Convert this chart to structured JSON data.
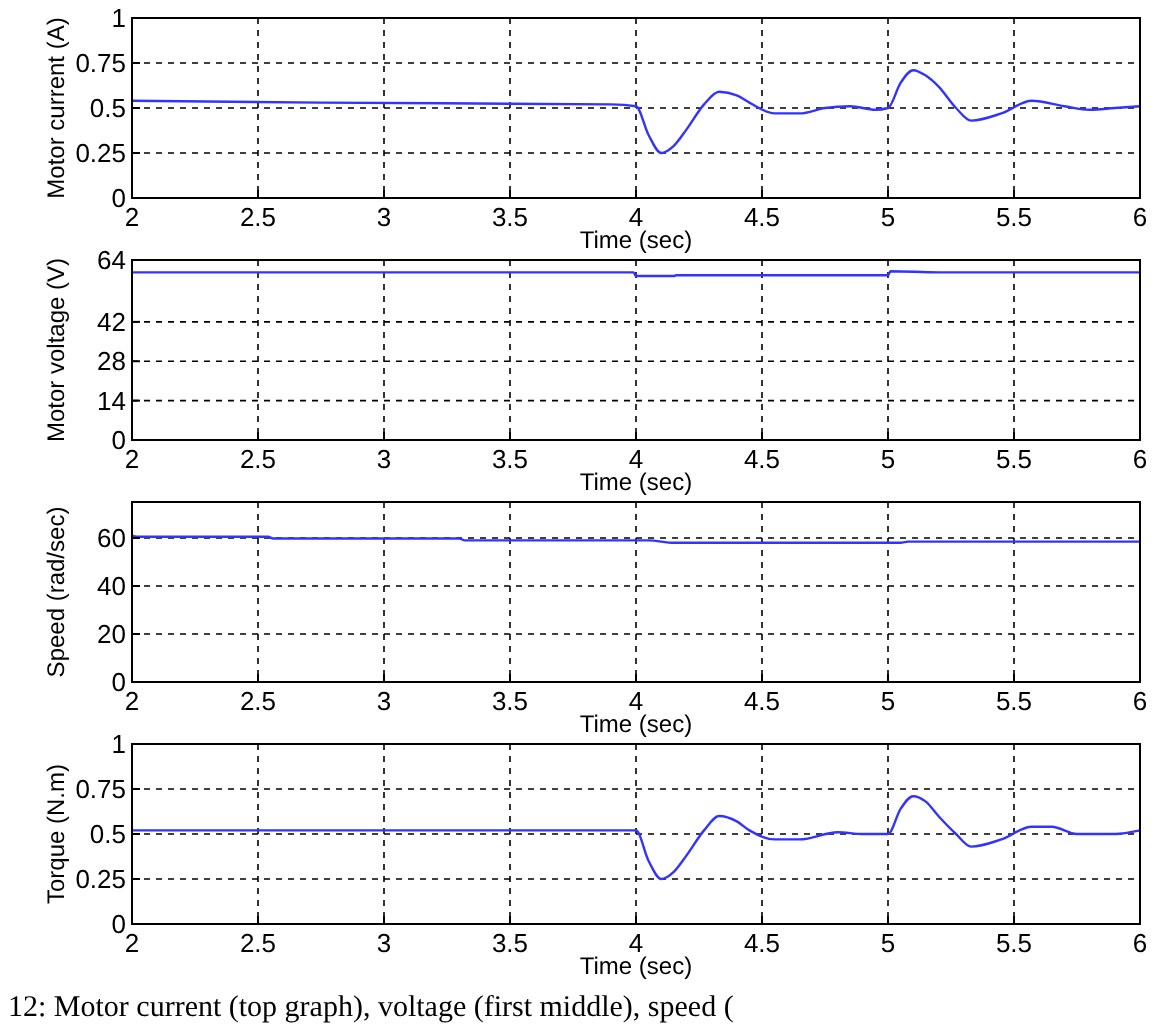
{
  "chart_data": [
    {
      "type": "line",
      "xlabel": "Time (sec)",
      "ylabel": "Motor current (A)",
      "xlim": [
        2,
        6
      ],
      "xticks": [
        2,
        2.5,
        3,
        3.5,
        4,
        4.5,
        5,
        5.5,
        6
      ],
      "ylim": [
        0,
        1
      ],
      "yticks": [
        0,
        0.25,
        0.5,
        0.75,
        1
      ],
      "grid": true,
      "series": [
        {
          "color": "#3333ff",
          "x": [
            2,
            2.75,
            3.9,
            4,
            4.05,
            4.1,
            4.15,
            4.2,
            4.27,
            4.33,
            4.4,
            4.45,
            4.55,
            4.65,
            4.75,
            4.85,
            4.95,
            5,
            5.05,
            5.1,
            5.15,
            5.2,
            5.27,
            5.33,
            5.45,
            5.57,
            5.7,
            5.8,
            5.9,
            6
          ],
          "values": [
            0.54,
            0.53,
            0.52,
            0.51,
            0.35,
            0.25,
            0.29,
            0.38,
            0.52,
            0.59,
            0.57,
            0.53,
            0.47,
            0.47,
            0.5,
            0.51,
            0.49,
            0.5,
            0.64,
            0.71,
            0.68,
            0.62,
            0.5,
            0.43,
            0.47,
            0.54,
            0.51,
            0.49,
            0.5,
            0.51
          ]
        }
      ]
    },
    {
      "type": "line",
      "xlabel": "Time (sec)",
      "ylabel": "Motor voltage (V)",
      "xlim": [
        2,
        6
      ],
      "xticks": [
        2,
        2.5,
        3,
        3.5,
        4,
        4.5,
        5,
        5.5,
        6
      ],
      "ylim": [
        0,
        64
      ],
      "yticks": [
        0,
        14,
        28,
        42,
        64
      ],
      "grid": true,
      "series": [
        {
          "color": "#3333ff",
          "x": [
            2,
            3.99,
            4,
            4.15,
            4.16,
            5,
            5.01,
            5.2,
            5.21,
            6
          ],
          "values": [
            59.6,
            59.6,
            58.3,
            58.3,
            58.6,
            58.6,
            60,
            59.6,
            59.6,
            59.6
          ]
        }
      ]
    },
    {
      "type": "line",
      "xlabel": "Time (sec)",
      "ylabel": "Speed (rad/sec)",
      "xlim": [
        2,
        6
      ],
      "xticks": [
        2,
        2.5,
        3,
        3.5,
        4,
        4.5,
        5,
        5.5,
        6
      ],
      "ylim": [
        0,
        75
      ],
      "yticks": [
        0,
        20,
        40,
        60
      ],
      "grid": true,
      "series": [
        {
          "color": "#3333ff",
          "x": [
            2,
            2.02,
            2.54,
            2.56,
            3.3,
            3.32,
            4.05,
            4.15,
            5.05,
            5.08,
            6
          ],
          "values": [
            61,
            60.5,
            60.5,
            59.8,
            59.8,
            59,
            59,
            58,
            58,
            58.5,
            58.5
          ]
        }
      ]
    },
    {
      "type": "line",
      "xlabel": "Time (sec)",
      "ylabel": "Torque (N.m)",
      "xlim": [
        2,
        6
      ],
      "xticks": [
        2,
        2.5,
        3,
        3.5,
        4,
        4.5,
        5,
        5.5,
        6
      ],
      "ylim": [
        0,
        1
      ],
      "yticks": [
        0,
        0.25,
        0.5,
        0.75,
        1
      ],
      "grid": true,
      "annotations": [
        "12: Motor current (top graph), voltage (first middle), speed ("
      ],
      "series": [
        {
          "color": "#3333ff",
          "x": [
            2,
            4,
            4.05,
            4.1,
            4.15,
            4.2,
            4.27,
            4.33,
            4.4,
            4.45,
            4.55,
            4.65,
            4.8,
            4.9,
            5,
            5.05,
            5.1,
            5.15,
            5.2,
            5.27,
            5.33,
            5.45,
            5.57,
            5.65,
            5.75,
            5.9,
            6
          ],
          "values": [
            0.52,
            0.52,
            0.35,
            0.25,
            0.29,
            0.38,
            0.52,
            0.6,
            0.57,
            0.52,
            0.47,
            0.47,
            0.51,
            0.5,
            0.5,
            0.64,
            0.71,
            0.68,
            0.6,
            0.5,
            0.43,
            0.47,
            0.54,
            0.54,
            0.5,
            0.5,
            0.52
          ]
        }
      ]
    }
  ]
}
